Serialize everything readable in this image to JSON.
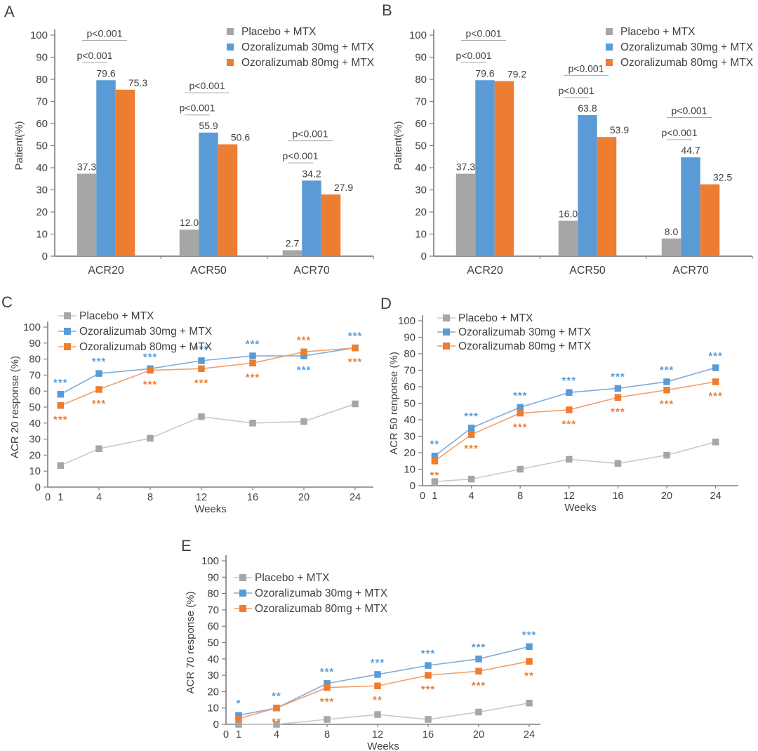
{
  "figure_title": "Ozoralizumab ACR response figure",
  "colors": {
    "placebo": "#A6A6A6",
    "placebo_line": "#C9C9C9",
    "ozo30": "#5B9BD5",
    "ozo30_line": "#7FACDE",
    "ozo80": "#ED7D31",
    "ozo80_line": "#F2A06B",
    "axis": "#7F7F7F",
    "text": "#3F3F3F",
    "bracket": "#A6A6A6"
  },
  "legend_labels": [
    "Placebo + MTX",
    "Ozoralizumab 30mg + MTX",
    "Ozoralizumab 80mg + MTX"
  ],
  "chart_data": [
    {
      "panel": "A",
      "type": "bar",
      "ylabel": "Patient(%)",
      "ylim": [
        0,
        100
      ],
      "ytick_step": 10,
      "categories": [
        "ACR20",
        "ACR50",
        "ACR70"
      ],
      "series": [
        {
          "name": "Placebo + MTX",
          "key": "placebo",
          "values": [
            37.3,
            12.0,
            2.7
          ],
          "value_labels": [
            "37.3",
            "12.0",
            "2.7"
          ]
        },
        {
          "name": "Ozoralizumab 30mg + MTX",
          "key": "ozo30",
          "values": [
            79.6,
            55.9,
            34.2
          ],
          "value_labels": [
            "79.6",
            "55.9",
            "34.2"
          ]
        },
        {
          "name": "Ozoralizumab 80mg + MTX",
          "key": "ozo80",
          "values": [
            75.3,
            50.6,
            27.9
          ],
          "value_labels": [
            "75.3",
            "50.6",
            "27.9"
          ]
        }
      ],
      "significance": [
        {
          "category": "ACR20",
          "lower": "p<0.001",
          "upper": "p<0.001"
        },
        {
          "category": "ACR50",
          "lower": "p<0.001",
          "upper": "p<0.001"
        },
        {
          "category": "ACR70",
          "lower": "p<0.001",
          "upper": "p<0.001"
        }
      ],
      "legend_position": "top-right"
    },
    {
      "panel": "B",
      "type": "bar",
      "ylabel": "Patient(%)",
      "ylim": [
        0,
        100
      ],
      "ytick_step": 10,
      "categories": [
        "ACR20",
        "ACR50",
        "ACR70"
      ],
      "series": [
        {
          "name": "Placebo + MTX",
          "key": "placebo",
          "values": [
            37.3,
            16.0,
            8.0
          ],
          "value_labels": [
            "37.3",
            "16.0",
            "8.0"
          ]
        },
        {
          "name": "Ozoralizumab 30mg + MTX",
          "key": "ozo30",
          "values": [
            79.6,
            63.8,
            44.7
          ],
          "value_labels": [
            "79.6",
            "63.8",
            "44.7"
          ]
        },
        {
          "name": "Ozoralizumab 80mg + MTX",
          "key": "ozo80",
          "values": [
            79.2,
            53.9,
            32.5
          ],
          "value_labels": [
            "79.2",
            "53.9",
            "32.5"
          ]
        }
      ],
      "significance": [
        {
          "category": "ACR20",
          "lower": "p<0.001",
          "upper": "p<0.001"
        },
        {
          "category": "ACR50",
          "lower": "p<0.001",
          "upper": "p<0.001"
        },
        {
          "category": "ACR70",
          "lower": "p<0.001",
          "upper": "p<0.001"
        }
      ],
      "legend_position": "top-right"
    },
    {
      "panel": "C",
      "type": "line",
      "xlabel": "Weeks",
      "ylabel": "ACR 20 response (%)",
      "ylim": [
        0,
        100
      ],
      "ytick_step": 10,
      "x": [
        1,
        4,
        8,
        12,
        16,
        20,
        24
      ],
      "xticks": [
        0,
        1,
        4,
        8,
        12,
        16,
        20,
        24
      ],
      "series": [
        {
          "name": "Placebo + MTX",
          "key": "placebo",
          "values": [
            13.5,
            24,
            30.5,
            44,
            40,
            41,
            52
          ]
        },
        {
          "name": "Ozoralizumab 30mg + MTX",
          "key": "ozo30",
          "values": [
            58,
            71,
            74,
            79,
            82,
            82,
            87
          ],
          "sig": [
            "***",
            "***",
            "***",
            "***",
            "***",
            "***",
            "***"
          ],
          "sig_side": [
            "above",
            "above",
            "above",
            "above",
            "above",
            "below",
            "above"
          ]
        },
        {
          "name": "Ozoralizumab 80mg + MTX",
          "key": "ozo80",
          "values": [
            51,
            61,
            73,
            74,
            77.5,
            84.5,
            87
          ],
          "sig": [
            "***",
            "***",
            "***",
            "***",
            "***",
            "***",
            "***"
          ],
          "sig_side": [
            "below",
            "below",
            "below",
            "below",
            "below",
            "above",
            "below"
          ]
        }
      ],
      "legend_position": "top-left"
    },
    {
      "panel": "D",
      "type": "line",
      "xlabel": "Weeks",
      "ylabel": "ACR 50 renponse (%)",
      "ylim": [
        0,
        100
      ],
      "ytick_step": 10,
      "x": [
        1,
        4,
        8,
        12,
        16,
        20,
        24
      ],
      "xticks": [
        0,
        1,
        4,
        8,
        12,
        16,
        20,
        24
      ],
      "series": [
        {
          "name": "Placebo + MTX",
          "key": "placebo",
          "values": [
            2.5,
            4,
            10,
            16,
            13.5,
            18.5,
            26.5
          ]
        },
        {
          "name": "Ozoralizumab 30mg + MTX",
          "key": "ozo30",
          "values": [
            18,
            35,
            47.5,
            56.5,
            59,
            63,
            71.5
          ],
          "sig": [
            "**",
            "***",
            "***",
            "***",
            "***",
            "***",
            "***"
          ],
          "sig_side": [
            "above",
            "above",
            "above",
            "above",
            "above",
            "above",
            "above"
          ]
        },
        {
          "name": "Ozoralizumab 80mg + MTX",
          "key": "ozo80",
          "values": [
            15,
            31,
            44,
            46,
            53.5,
            58,
            63
          ],
          "sig": [
            "**",
            "***",
            "***",
            "***",
            "***",
            "***",
            "***"
          ],
          "sig_side": [
            "below",
            "below",
            "below",
            "below",
            "below",
            "below",
            "below"
          ]
        }
      ],
      "legend_position": "top-left"
    },
    {
      "panel": "E",
      "type": "line",
      "xlabel": "Weeks",
      "ylabel": "ACR 70 response (%)",
      "ylim": [
        0,
        100
      ],
      "ytick_step": 10,
      "x": [
        1,
        4,
        8,
        12,
        16,
        20,
        24
      ],
      "xticks": [
        0,
        1,
        4,
        8,
        12,
        16,
        20,
        24
      ],
      "series": [
        {
          "name": "Placebo + MTX",
          "key": "placebo",
          "values": [
            0,
            0,
            3,
            6,
            3,
            7.5,
            13
          ]
        },
        {
          "name": "Ozoralizumab 30mg + MTX",
          "key": "ozo30",
          "values": [
            5.5,
            10,
            25,
            30.5,
            36,
            40,
            47.5
          ],
          "sig": [
            "*",
            "**",
            "***",
            "***",
            "***",
            "***",
            "***"
          ],
          "sig_side": [
            "above",
            "above",
            "above",
            "above",
            "above",
            "above",
            "above"
          ]
        },
        {
          "name": "Ozoralizumab 80mg + MTX",
          "key": "ozo80",
          "values": [
            3.5,
            10,
            22.5,
            23.5,
            30,
            32.5,
            38.5
          ],
          "sig": [
            "",
            "**",
            "***",
            "**",
            "***",
            "***",
            "**"
          ],
          "sig_side": [
            "below",
            "below",
            "below",
            "below",
            "below",
            "below",
            "below"
          ]
        }
      ],
      "legend_position": "top-left"
    }
  ]
}
